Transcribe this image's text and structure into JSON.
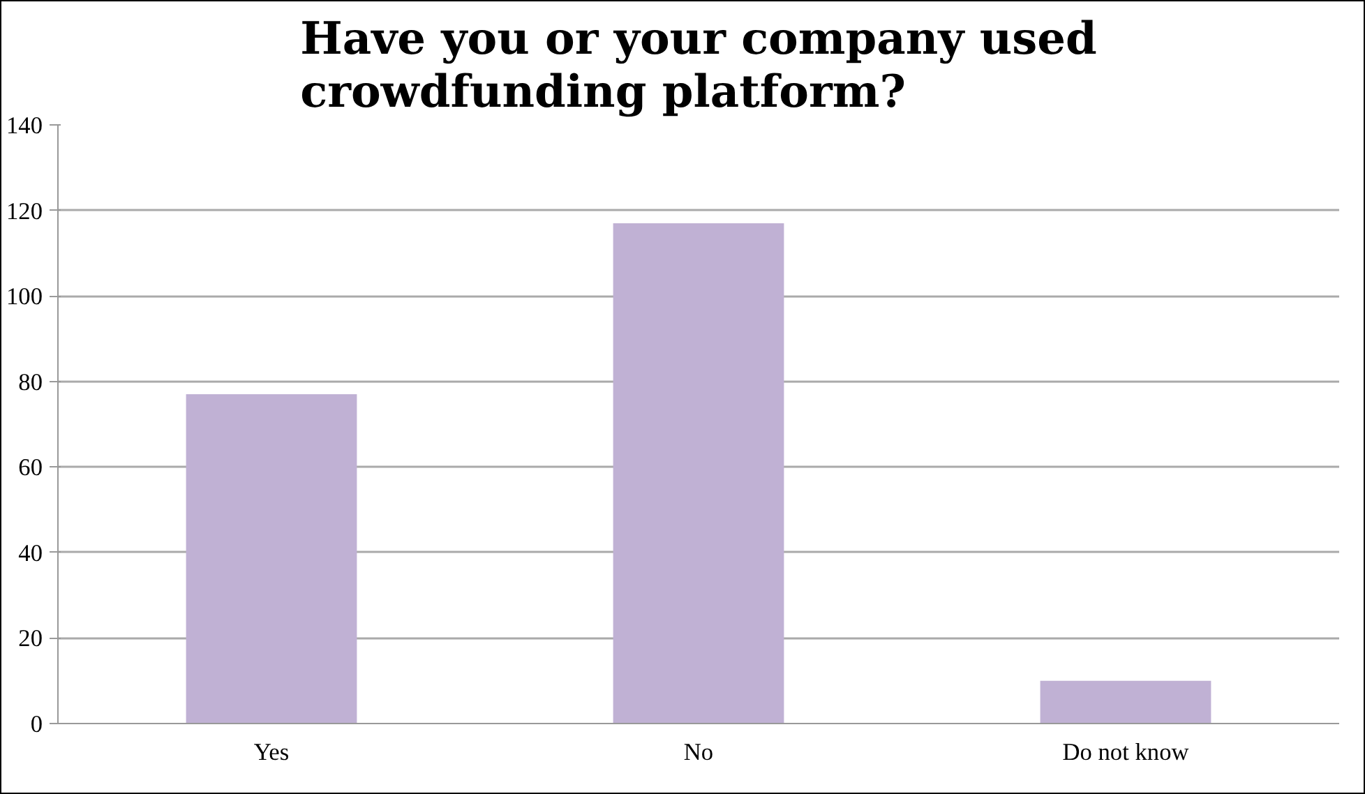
{
  "chart_data": {
    "type": "bar",
    "title": "Have you or your company used crowdfunding platform?",
    "categories": [
      "Yes",
      "No",
      "Do not know"
    ],
    "values": [
      77,
      117,
      10
    ],
    "color": "#c0b1d4",
    "ylim": [
      0,
      140
    ],
    "yticks": [
      0,
      20,
      40,
      60,
      80,
      100,
      120,
      140
    ],
    "grid": "y"
  }
}
